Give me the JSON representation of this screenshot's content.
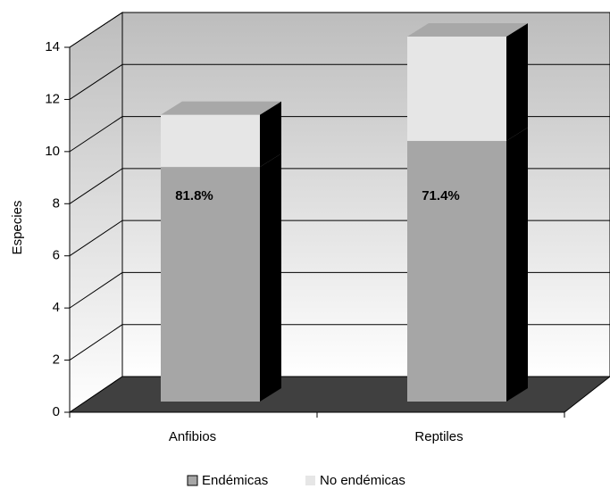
{
  "chart_data": {
    "type": "bar3d_stacked",
    "y_label": "Especies",
    "categories": [
      "Anfibios",
      "Reptiles"
    ],
    "series": [
      {
        "name": "Endémicas",
        "color": "#a6a6a6",
        "values": [
          9,
          10
        ]
      },
      {
        "name": "No endémicas",
        "color": "#e6e6e6",
        "values": [
          2,
          4
        ]
      }
    ],
    "annotations": [
      "81.8%",
      "71.4%"
    ],
    "ylim": [
      0,
      14
    ],
    "yticks": [
      0,
      2,
      4,
      6,
      8,
      10,
      12,
      14
    ],
    "grid": true,
    "legend": "bottom"
  }
}
